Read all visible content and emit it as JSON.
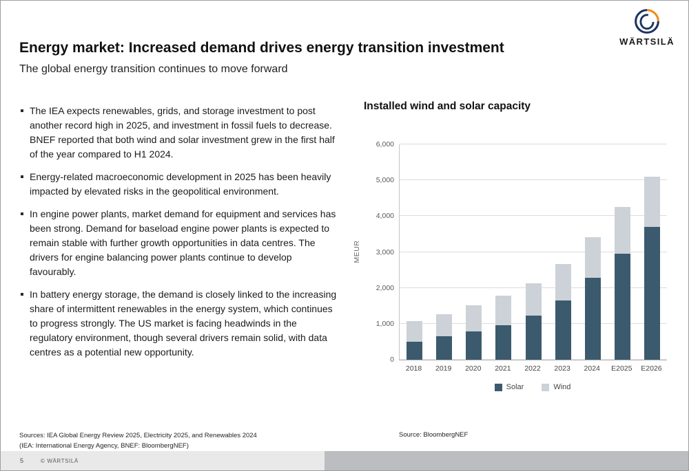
{
  "slide": {
    "title": "Energy market: Increased demand drives energy transition investment",
    "subtitle": "The global energy transition continues to move forward",
    "logo_text": "WÄRTSILÄ",
    "bullets": [
      "The IEA expects renewables, grids, and storage investment to post another record high in 2025, and investment in fossil fuels to decrease. BNEF reported that both wind and solar investment grew in the first half of the year compared to H1 2024.",
      "Energy-related macroeconomic development in 2025 has been heavily impacted by elevated risks in the geopolitical environment.",
      "In engine power plants, market demand for equipment and services has been strong. Demand for baseload engine power plants is expected to remain stable with further growth opportunities in data centres. The drivers for engine balancing power plants continue to develop favourably.",
      "In battery energy storage, the demand is closely linked to the increasing share of intermittent renewables in the energy system, which continues to progress strongly. The US market is facing headwinds in the regulatory environment, though several drivers remain solid, with data centres as a potential new opportunity."
    ],
    "sources_line1": "Sources: IEA Global Energy Review 2025, Electricity 2025, and Renewables 2024",
    "sources_line2": "(IEA: International Energy Agency, BNEF: BloombergNEF)",
    "footer": {
      "page_number": "5",
      "copyright": "© WÄRTSILÄ"
    }
  },
  "chart_data": {
    "type": "bar",
    "stacked": true,
    "title": "Installed wind and solar capacity",
    "categories": [
      "2018",
      "2019",
      "2020",
      "2021",
      "2022",
      "2023",
      "2024",
      "E2025",
      "E2026"
    ],
    "series": [
      {
        "name": "Solar",
        "color": "#3c5a6d",
        "values": [
          500,
          650,
          780,
          960,
          1230,
          1650,
          2280,
          2950,
          3700
        ]
      },
      {
        "name": "Wind",
        "color": "#ccd2d7",
        "values": [
          580,
          620,
          730,
          830,
          900,
          1020,
          1130,
          1300,
          1400
        ]
      }
    ],
    "xlabel": "",
    "ylabel": "MEUR",
    "ylim": [
      0,
      6000
    ],
    "yticks": [
      0,
      1000,
      2000,
      3000,
      4000,
      5000,
      6000
    ],
    "grid": true,
    "legend_position": "bottom",
    "source": "Source: BloombergNEF"
  }
}
